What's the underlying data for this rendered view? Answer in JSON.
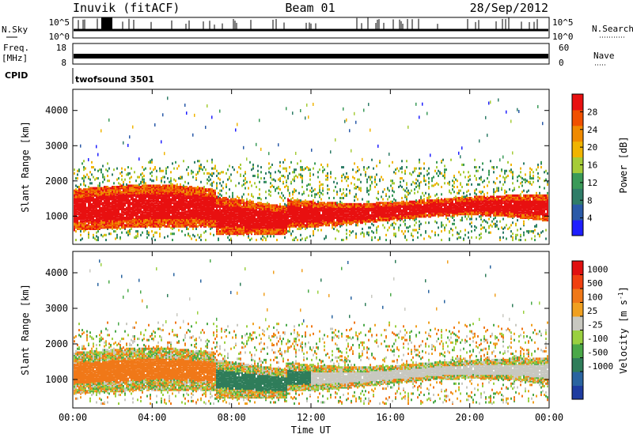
{
  "header": {
    "station": "Inuvik (fitACF)",
    "beam": "Beam 01",
    "date": "28/Sep/2012"
  },
  "nsky": {
    "label": "N.Sky",
    "top_tick": "10^5",
    "bottom_tick": "10^0",
    "right_label": "N.Search",
    "right_top_tick": "10^5",
    "right_bottom_tick": "10^0"
  },
  "freq": {
    "label_line1": "Freq.",
    "label_line2": "[MHz]",
    "top_tick": "18",
    "bottom_tick": "8",
    "right_label": "Nave",
    "right_top_tick": "60",
    "right_bottom_tick": "0"
  },
  "cpid": {
    "label": "CPID",
    "value": "twofsound 3501"
  },
  "chart_data": [
    {
      "type": "heatmap",
      "name": "power",
      "xlabel": "",
      "ylabel": "Slant Range [km]",
      "yticks": [
        "4000",
        "3000",
        "2000",
        "1000"
      ],
      "ytick_values": [
        4000,
        3000,
        2000,
        1000
      ],
      "ylim": [
        200,
        4600
      ],
      "xlim": [
        0,
        24
      ],
      "colorbar": {
        "label": "Power [dB]",
        "ticks": [
          "28",
          "24",
          "20",
          "16",
          "12",
          "8",
          "4"
        ],
        "tick_values": [
          28,
          24,
          20,
          16,
          12,
          8,
          4
        ],
        "range": [
          0,
          32
        ],
        "colors": [
          "#1e1eff",
          "#2a5aa8",
          "#2f7d68",
          "#3a9a58",
          "#a6cc38",
          "#f0b400",
          "#f08a00",
          "#f05000",
          "#e81010"
        ]
      }
    },
    {
      "type": "heatmap",
      "name": "velocity",
      "xlabel": "Time UT",
      "ylabel": "Slant Range [km]",
      "yticks": [
        "4000",
        "3000",
        "2000",
        "1000"
      ],
      "ytick_values": [
        4000,
        3000,
        2000,
        1000
      ],
      "ylim": [
        200,
        4600
      ],
      "xlim": [
        0,
        24
      ],
      "xticks": [
        "00:00",
        "04:00",
        "08:00",
        "12:00",
        "16:00",
        "20:00",
        "00:00"
      ],
      "xtick_values": [
        0,
        4,
        8,
        12,
        16,
        20,
        24
      ],
      "colorbar": {
        "label": "Velocity [m s",
        "label_sup": "-1",
        "label_end": "]",
        "ticks": [
          "1000",
          "500",
          "100",
          "25",
          "-25",
          "-100",
          "-500",
          "-1000"
        ],
        "colors": [
          "#1e3ca0",
          "#2a64a0",
          "#2f7d5a",
          "#4aa848",
          "#9ad040",
          "#c8c8c0",
          "#f0a020",
          "#f07818",
          "#f04010",
          "#e01010"
        ]
      }
    }
  ]
}
